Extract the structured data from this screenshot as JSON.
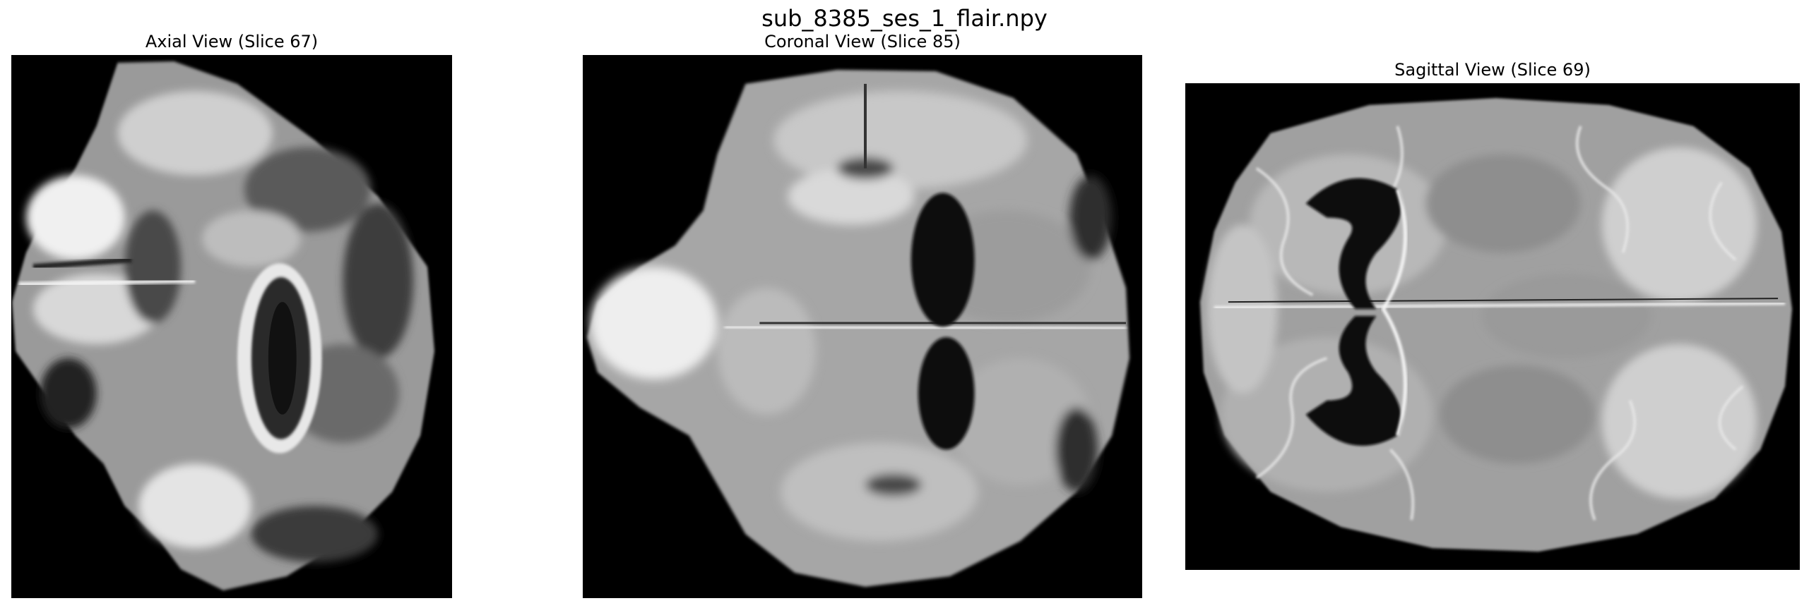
{
  "figure": {
    "title": "sub_8385_ses_1_flair.npy"
  },
  "panels": [
    {
      "title": "Axial View (Slice 67)"
    },
    {
      "title": "Coronal View (Slice 85)"
    },
    {
      "title": "Sagittal View (Slice 69)"
    }
  ],
  "colors": {
    "background": "#000000",
    "figure_background": "#ffffff"
  }
}
